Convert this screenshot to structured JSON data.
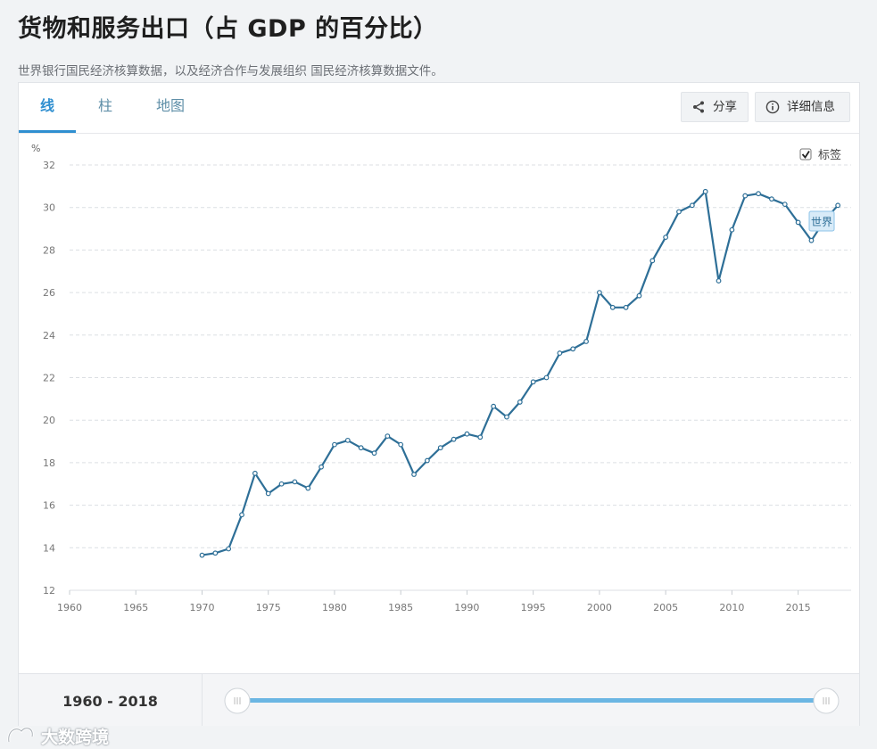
{
  "page": {
    "title": "货物和服务出口（占 GDP 的百分比）",
    "subtitle": "世界银行国民经济核算数据，以及经济合作与发展组织 国民经济核算数据文件。"
  },
  "tabs": [
    {
      "label": "线",
      "active": true
    },
    {
      "label": "柱",
      "active": false
    },
    {
      "label": "地图",
      "active": false
    }
  ],
  "toolbar": {
    "share_label": "分享",
    "share_icon": "share-icon",
    "details_label": "详细信息",
    "details_icon": "info-icon"
  },
  "labels_toggle": {
    "label": "标签",
    "checked": true
  },
  "range": {
    "label": "1960 - 2018",
    "start": 1960,
    "end": 2018
  },
  "watermark": {
    "text": "大数跨境"
  },
  "colors": {
    "line": "#2e6f97",
    "accent": "#2f8fd0",
    "slider": "#6bb6e3"
  },
  "chart_data": {
    "type": "line",
    "title": "",
    "ylabel": "%",
    "xlabel": "",
    "xlim": [
      1960,
      2019
    ],
    "ylim": [
      12,
      32
    ],
    "xticks": [
      1960,
      1965,
      1970,
      1975,
      1980,
      1985,
      1990,
      1995,
      2000,
      2005,
      2010,
      2015
    ],
    "yticks": [
      12,
      14,
      16,
      18,
      20,
      22,
      24,
      26,
      28,
      30,
      32
    ],
    "grid": "horizontal-dashed",
    "series": [
      {
        "name": "世界",
        "x": [
          1970,
          1971,
          1972,
          1973,
          1974,
          1975,
          1976,
          1977,
          1978,
          1979,
          1980,
          1981,
          1982,
          1983,
          1984,
          1985,
          1986,
          1987,
          1988,
          1989,
          1990,
          1991,
          1992,
          1993,
          1994,
          1995,
          1996,
          1997,
          1998,
          1999,
          2000,
          2001,
          2002,
          2003,
          2004,
          2005,
          2006,
          2007,
          2008,
          2009,
          2010,
          2011,
          2012,
          2013,
          2014,
          2015,
          2016,
          2017,
          2018
        ],
        "values": [
          13.65,
          13.75,
          13.95,
          15.55,
          17.5,
          16.55,
          17.0,
          17.1,
          16.8,
          17.8,
          18.85,
          19.05,
          18.7,
          18.45,
          19.25,
          18.85,
          17.45,
          18.1,
          18.7,
          19.1,
          19.35,
          19.2,
          20.65,
          20.15,
          20.85,
          21.8,
          22.0,
          23.15,
          23.35,
          23.7,
          26.0,
          25.3,
          25.3,
          25.85,
          27.5,
          28.6,
          29.8,
          30.1,
          30.75,
          26.55,
          28.95,
          30.55,
          30.65,
          30.4,
          30.15,
          29.3,
          28.45,
          29.4,
          30.1
        ]
      }
    ]
  }
}
